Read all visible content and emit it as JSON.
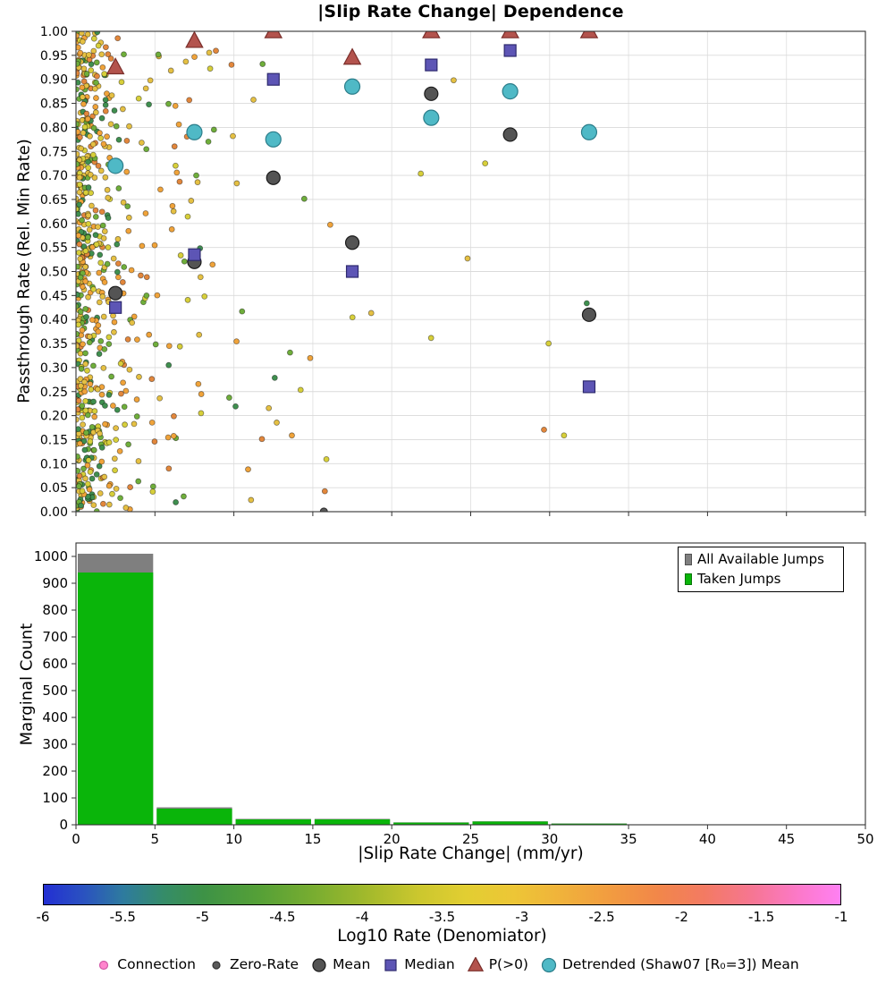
{
  "title": "|Slip Rate Change| Dependence",
  "chart_data": [
    {
      "type": "scatter",
      "title": "|Slip Rate Change| Dependence",
      "xlabel": "",
      "ylabel": "Passthrough Rate (Rel. Min Rate)",
      "xlim": [
        0,
        50
      ],
      "ylim": [
        0.0,
        1.0
      ],
      "xticks": [
        0,
        5,
        10,
        15,
        20,
        25,
        30,
        35,
        40,
        45,
        50
      ],
      "ytick_step": 0.05,
      "grid": true,
      "series": [
        {
          "name": "Mean",
          "marker": "circle",
          "color": "#545454",
          "edge": "#1a1a1a",
          "size": 7.5,
          "x": [
            2.5,
            7.5,
            12.5,
            17.5,
            22.5,
            27.5,
            32.5
          ],
          "y": [
            0.455,
            0.52,
            0.695,
            0.56,
            0.87,
            0.785,
            0.41
          ]
        },
        {
          "name": "Median",
          "marker": "square",
          "color": "#5d55b5",
          "edge": "#2e2a6e",
          "size": 13,
          "x": [
            2.5,
            7.5,
            12.5,
            17.5,
            22.5,
            27.5,
            32.5
          ],
          "y": [
            0.425,
            0.535,
            0.9,
            0.5,
            0.93,
            0.96,
            0.26
          ]
        },
        {
          "name": "P(>0)",
          "marker": "triangle",
          "color": "#b3534d",
          "edge": "#7a2e2a",
          "size": 16,
          "x": [
            2.5,
            7.5,
            12.5,
            17.5,
            22.5,
            27.5,
            32.5
          ],
          "y": [
            0.925,
            0.98,
            1.0,
            0.945,
            1.0,
            1.0,
            1.0
          ]
        },
        {
          "name": "Detrended (Shaw07 [R₀=3]) Mean",
          "marker": "circle",
          "color": "#4fb9c6",
          "edge": "#2b7d8a",
          "size": 8.5,
          "x": [
            2.5,
            7.5,
            12.5,
            17.5,
            22.5,
            27.5,
            32.5
          ],
          "y": [
            0.72,
            0.79,
            0.775,
            0.885,
            0.82,
            0.875,
            0.79
          ]
        },
        {
          "name": "Zero-Rate",
          "marker": "circle",
          "color": "#5a5a5a",
          "edge": "#333333",
          "size": 4,
          "x": [
            15.7
          ],
          "y": [
            0.0
          ]
        }
      ],
      "background_scatter": {
        "count": 680,
        "seed": 20240613,
        "x_exp_mix": [
          {
            "mean": 1.0,
            "w": 0.75
          },
          {
            "mean": 7.0,
            "w": 0.25
          }
        ],
        "x_cap": 36,
        "point_radius": 3,
        "palette": [
          {
            "hex": "#e5c043",
            "w": 0.26
          },
          {
            "hex": "#f0a33a",
            "w": 0.22
          },
          {
            "hex": "#d7cf3a",
            "w": 0.12
          },
          {
            "hex": "#6fae3b",
            "w": 0.16
          },
          {
            "hex": "#3f8f4f",
            "w": 0.14
          },
          {
            "hex": "#e2873c",
            "w": 0.1
          }
        ]
      }
    },
    {
      "type": "bar",
      "xlabel": "|Slip Rate Change| (mm/yr)",
      "ylabel": "Marginal Count",
      "xlim": [
        0,
        50
      ],
      "ylim": [
        0,
        1050
      ],
      "xticks": [
        0,
        5,
        10,
        15,
        20,
        25,
        30,
        35,
        40,
        45,
        50
      ],
      "yticks": [
        0,
        100,
        200,
        300,
        400,
        500,
        600,
        700,
        800,
        900,
        1000
      ],
      "bin_edges": [
        0,
        5,
        10,
        15,
        20,
        25,
        30,
        35,
        40,
        45,
        50
      ],
      "series": [
        {
          "name": "All Available Jumps",
          "color": "#7f7f7f",
          "values": [
            1010,
            65,
            22,
            22,
            9,
            13,
            5,
            0,
            0,
            0
          ]
        },
        {
          "name": "Taken Jumps",
          "color": "#0ab50a",
          "values": [
            940,
            60,
            20,
            20,
            8,
            12,
            4,
            0,
            0,
            0
          ]
        }
      ],
      "legend_position": "upper right"
    },
    {
      "type": "colorbar",
      "label": "Log10 Rate (Denomiator)",
      "min": -6,
      "max": -1,
      "ticks": [
        -6,
        -5.5,
        -5,
        -4.5,
        -4,
        -3.5,
        -3,
        -2.5,
        -2,
        -1.5,
        -1
      ],
      "gradient": [
        [
          0,
          "#232fd3"
        ],
        [
          0.05,
          "#2a52c0"
        ],
        [
          0.1,
          "#2e7b9e"
        ],
        [
          0.15,
          "#358c69"
        ],
        [
          0.2,
          "#3d9246"
        ],
        [
          0.27,
          "#55a037"
        ],
        [
          0.34,
          "#79ad30"
        ],
        [
          0.41,
          "#a5ba2c"
        ],
        [
          0.47,
          "#cbc72e"
        ],
        [
          0.53,
          "#e2ce32"
        ],
        [
          0.59,
          "#edc636"
        ],
        [
          0.65,
          "#f0b23b"
        ],
        [
          0.71,
          "#f29c40"
        ],
        [
          0.77,
          "#f28749"
        ],
        [
          0.83,
          "#f37a63"
        ],
        [
          0.89,
          "#f67693"
        ],
        [
          0.95,
          "#fc79cb"
        ],
        [
          1,
          "#ff80f3"
        ]
      ]
    }
  ],
  "bottom_legend": {
    "items": [
      {
        "label": "Connection",
        "marker": "dot",
        "color": "#ff85cd",
        "edge": "#d159a8",
        "size": 4.5
      },
      {
        "label": "Zero-Rate",
        "marker": "dot",
        "color": "#5a5a5a",
        "edge": "#333333",
        "size": 4
      },
      {
        "label": "Mean",
        "marker": "circle",
        "color": "#545454",
        "edge": "#1a1a1a",
        "size": 7
      },
      {
        "label": "Median",
        "marker": "square",
        "color": "#5d55b5",
        "edge": "#2e2a6e",
        "size": 12
      },
      {
        "label": "P(>0)",
        "marker": "triangle",
        "color": "#b3534d",
        "edge": "#7a2e2a",
        "size": 14
      },
      {
        "label": "Detrended (Shaw07 [R₀=3]) Mean",
        "marker": "circle",
        "color": "#4fb9c6",
        "edge": "#2b7d8a",
        "size": 7.5
      }
    ]
  }
}
